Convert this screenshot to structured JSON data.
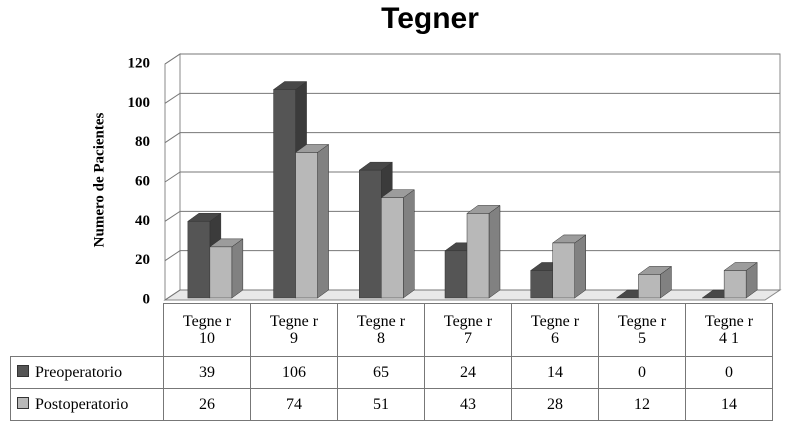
{
  "chart_data": {
    "type": "bar3d",
    "title": "Tegner",
    "y_label": "Numero de Pacientes",
    "categories": [
      "Tegne r 10",
      "Tegne r 9",
      "Tegne r 8",
      "Tegne r 7",
      "Tegne r 6",
      "Tegne r 5",
      "Tegne r 4 1"
    ],
    "series": [
      {
        "name": "Preoperatorio",
        "color": "#555555",
        "values": [
          39,
          106,
          65,
          24,
          14,
          0,
          0
        ]
      },
      {
        "name": "Postoperatorio",
        "color": "#b8b8b8",
        "values": [
          26,
          74,
          51,
          43,
          28,
          12,
          14
        ]
      }
    ],
    "ylim": [
      0,
      120
    ],
    "yticks": [
      0,
      20,
      40,
      60,
      80,
      100,
      120
    ],
    "grid": true
  }
}
